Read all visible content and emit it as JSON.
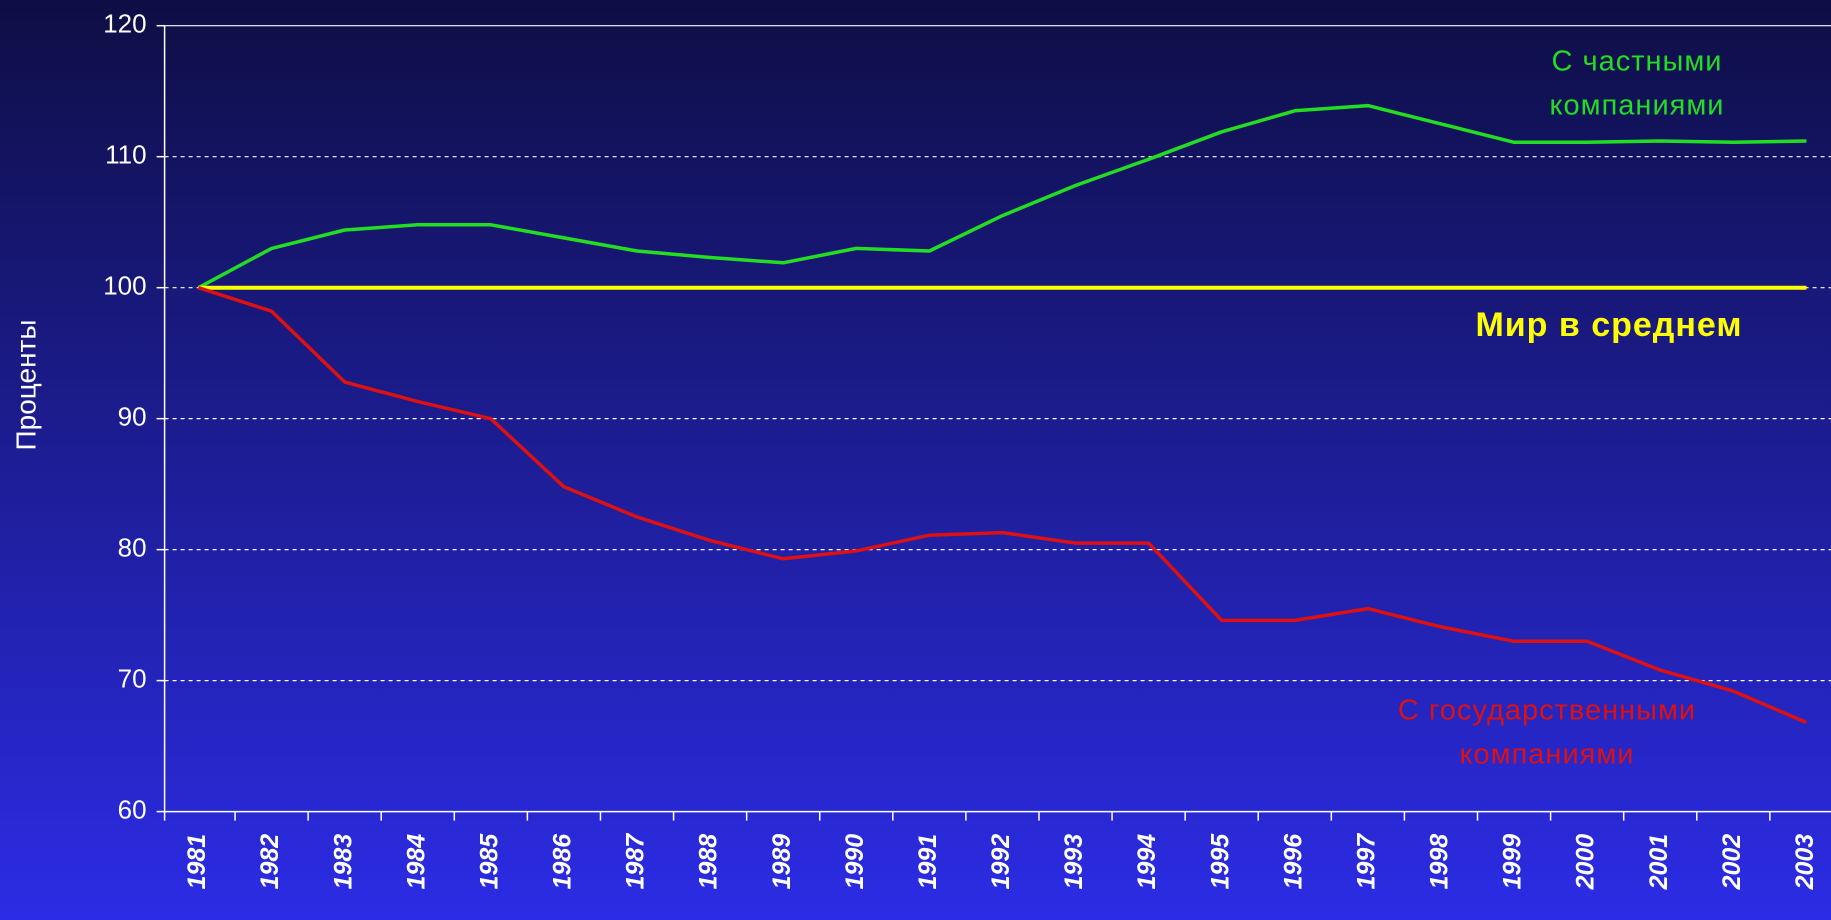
{
  "chart_data": {
    "type": "line",
    "y_label": "Проценты",
    "categories": [
      "1981",
      "1982",
      "1983",
      "1984",
      "1985",
      "1986",
      "1987",
      "1988",
      "1989",
      "1990",
      "1991",
      "1992",
      "1993",
      "1994",
      "1995",
      "1996",
      "1997",
      "1998",
      "1999",
      "2000",
      "2001",
      "2002",
      "2003"
    ],
    "ylim": [
      60,
      120
    ],
    "yticks": [
      60,
      70,
      80,
      90,
      100,
      110,
      120
    ],
    "grid": true,
    "series": [
      {
        "label_lines": [
          "С частными",
          "компаниями"
        ],
        "color": "#22dd22",
        "values": [
          100,
          103,
          104.4,
          104.8,
          104.8,
          103.8,
          102.8,
          102.3,
          101.9,
          103,
          102.8,
          105.5,
          107.8,
          109.8,
          111.9,
          113.5,
          113.9,
          112.5,
          111.1,
          111.1,
          111.2,
          111.1,
          111.2
        ]
      },
      {
        "label_lines": [
          "Мир в среднем"
        ],
        "color": "#ffff00",
        "values": [
          100,
          100,
          100,
          100,
          100,
          100,
          100,
          100,
          100,
          100,
          100,
          100,
          100,
          100,
          100,
          100,
          100,
          100,
          100,
          100,
          100,
          100,
          100
        ]
      },
      {
        "label_lines": [
          "С государственными",
          "компаниями"
        ],
        "color": "#dd1111",
        "values": [
          100,
          98.2,
          92.8,
          91.3,
          90,
          84.8,
          82.5,
          80.7,
          79.3,
          79.9,
          81.1,
          81.3,
          80.5,
          80.5,
          74.6,
          74.6,
          75.5,
          74.1,
          73,
          73,
          70.8,
          69.2,
          66.8
        ]
      }
    ]
  }
}
